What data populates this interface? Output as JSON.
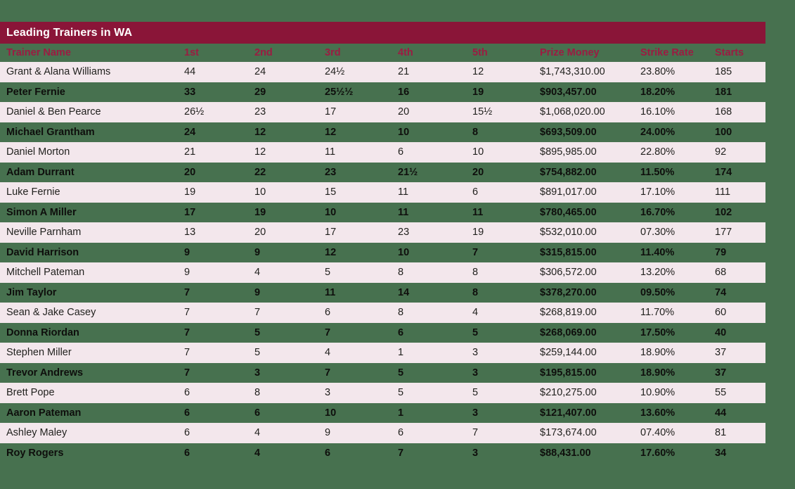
{
  "title_bar": {
    "label": "Leading Trainers in WA"
  },
  "colors": {
    "page_background": "#47714F",
    "title_bar_background": "#8A1538",
    "title_text": "#FFFFFF",
    "header_text": "#9B1C42",
    "alt_row_background": "#F3E7EC",
    "row_text": "#22221F"
  },
  "chart_data": {
    "type": "table",
    "title": "Leading Trainers in WA",
    "columns": [
      "Trainer Name",
      "1st",
      "2nd",
      "3rd",
      "4th",
      "5th",
      "Prize Money",
      "Strike Rate",
      "Starts"
    ],
    "rows": [
      {
        "name": "Grant & Alana Williams",
        "first": "44",
        "second": "24",
        "third": "24½",
        "fourth": "21",
        "fifth": "12",
        "prize_money": "$1,743,310.00",
        "strike_rate": "23.80%",
        "starts": "185"
      },
      {
        "name": "Peter Fernie",
        "first": "33",
        "second": "29",
        "third": "25½½",
        "fourth": "16",
        "fifth": "19",
        "prize_money": "$903,457.00",
        "strike_rate": "18.20%",
        "starts": "181"
      },
      {
        "name": "Daniel & Ben Pearce",
        "first": "26½",
        "second": "23",
        "third": "17",
        "fourth": "20",
        "fifth": "15½",
        "prize_money": "$1,068,020.00",
        "strike_rate": "16.10%",
        "starts": "168"
      },
      {
        "name": "Michael Grantham",
        "first": "24",
        "second": "12",
        "third": "12",
        "fourth": "10",
        "fifth": "8",
        "prize_money": "$693,509.00",
        "strike_rate": "24.00%",
        "starts": "100"
      },
      {
        "name": "Daniel Morton",
        "first": "21",
        "second": "12",
        "third": "11",
        "fourth": "6",
        "fifth": "10",
        "prize_money": "$895,985.00",
        "strike_rate": "22.80%",
        "starts": "92"
      },
      {
        "name": "Adam Durrant",
        "first": "20",
        "second": "22",
        "third": "23",
        "fourth": "21½",
        "fifth": "20",
        "prize_money": "$754,882.00",
        "strike_rate": "11.50%",
        "starts": "174"
      },
      {
        "name": "Luke Fernie",
        "first": "19",
        "second": "10",
        "third": "15",
        "fourth": "11",
        "fifth": "6",
        "prize_money": "$891,017.00",
        "strike_rate": "17.10%",
        "starts": "111"
      },
      {
        "name": "Simon A Miller",
        "first": "17",
        "second": "19",
        "third": "10",
        "fourth": "11",
        "fifth": "11",
        "prize_money": "$780,465.00",
        "strike_rate": "16.70%",
        "starts": "102"
      },
      {
        "name": "Neville Parnham",
        "first": "13",
        "second": "20",
        "third": "17",
        "fourth": "23",
        "fifth": "19",
        "prize_money": "$532,010.00",
        "strike_rate": "07.30%",
        "starts": "177"
      },
      {
        "name": "David Harrison",
        "first": "9",
        "second": "9",
        "third": "12",
        "fourth": "10",
        "fifth": "7",
        "prize_money": "$315,815.00",
        "strike_rate": "11.40%",
        "starts": "79"
      },
      {
        "name": "Mitchell Pateman",
        "first": "9",
        "second": "4",
        "third": "5",
        "fourth": "8",
        "fifth": "8",
        "prize_money": "$306,572.00",
        "strike_rate": "13.20%",
        "starts": "68"
      },
      {
        "name": "Jim Taylor",
        "first": "7",
        "second": "9",
        "third": "11",
        "fourth": "14",
        "fifth": "8",
        "prize_money": "$378,270.00",
        "strike_rate": "09.50%",
        "starts": "74"
      },
      {
        "name": "Sean & Jake Casey",
        "first": "7",
        "second": "7",
        "third": "6",
        "fourth": "8",
        "fifth": "4",
        "prize_money": "$268,819.00",
        "strike_rate": "11.70%",
        "starts": "60"
      },
      {
        "name": "Donna Riordan",
        "first": "7",
        "second": "5",
        "third": "7",
        "fourth": "6",
        "fifth": "5",
        "prize_money": "$268,069.00",
        "strike_rate": "17.50%",
        "starts": "40"
      },
      {
        "name": "Stephen Miller",
        "first": "7",
        "second": "5",
        "third": "4",
        "fourth": "1",
        "fifth": "3",
        "prize_money": "$259,144.00",
        "strike_rate": "18.90%",
        "starts": "37"
      },
      {
        "name": "Trevor Andrews",
        "first": "7",
        "second": "3",
        "third": "7",
        "fourth": "5",
        "fifth": "3",
        "prize_money": "$195,815.00",
        "strike_rate": "18.90%",
        "starts": "37"
      },
      {
        "name": "Brett Pope",
        "first": "6",
        "second": "8",
        "third": "3",
        "fourth": "5",
        "fifth": "5",
        "prize_money": "$210,275.00",
        "strike_rate": "10.90%",
        "starts": "55"
      },
      {
        "name": "Aaron Pateman",
        "first": "6",
        "second": "6",
        "third": "10",
        "fourth": "1",
        "fifth": "3",
        "prize_money": "$121,407.00",
        "strike_rate": "13.60%",
        "starts": "44"
      },
      {
        "name": "Ashley Maley",
        "first": "6",
        "second": "4",
        "third": "9",
        "fourth": "6",
        "fifth": "7",
        "prize_money": "$173,674.00",
        "strike_rate": "07.40%",
        "starts": "81"
      },
      {
        "name": "Roy Rogers",
        "first": "6",
        "second": "4",
        "third": "6",
        "fourth": "7",
        "fifth": "3",
        "prize_money": "$88,431.00",
        "strike_rate": "17.60%",
        "starts": "34"
      }
    ]
  }
}
